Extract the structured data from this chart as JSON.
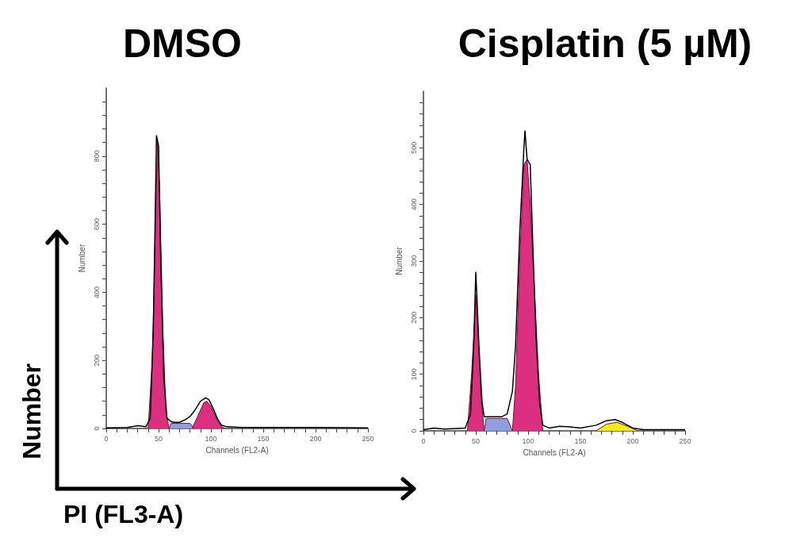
{
  "chart_data": [
    {
      "type": "area",
      "title": "DMSO",
      "xlabel": "Channels (FL2-A)",
      "ylabel": "Number",
      "marker": "none",
      "grid": false,
      "annotations": [
        "Number",
        "PI (FL3-A)"
      ],
      "xlim": [
        0,
        250
      ],
      "xticks": [
        0,
        {
          "value": 10,
          "label": null
        },
        {
          "value": 20,
          "label": null
        },
        {
          "value": 30,
          "label": null
        },
        {
          "value": 40,
          "label": null
        },
        50,
        {
          "value": 60,
          "label": null
        },
        {
          "value": 70,
          "label": null
        },
        {
          "value": 80,
          "label": null
        },
        {
          "value": 90,
          "label": null
        },
        100,
        {
          "value": 110,
          "label": null
        },
        {
          "value": 120,
          "label": null
        },
        {
          "value": 130,
          "label": null
        },
        {
          "value": 140,
          "label": null
        },
        150,
        {
          "value": 160,
          "label": null
        },
        {
          "value": 170,
          "label": null
        },
        {
          "value": 180,
          "label": null
        },
        {
          "value": 190,
          "label": null
        },
        200,
        {
          "value": 210,
          "label": null
        },
        {
          "value": 220,
          "label": null
        },
        {
          "value": 230,
          "label": null
        },
        {
          "value": 240,
          "label": null
        },
        250
      ],
      "ylim": [
        0,
        1000
      ],
      "yticks": [
        0,
        {
          "value": 40,
          "label": null
        },
        {
          "value": 80,
          "label": null
        },
        {
          "value": 120,
          "label": null
        },
        {
          "value": 160,
          "label": null
        },
        200,
        {
          "value": 240,
          "label": null
        },
        {
          "value": 280,
          "label": null
        },
        {
          "value": 320,
          "label": null
        },
        {
          "value": 360,
          "label": null
        },
        400,
        {
          "value": 440,
          "label": null
        },
        {
          "value": 480,
          "label": null
        },
        {
          "value": 520,
          "label": null
        },
        {
          "value": 560,
          "label": null
        },
        600,
        {
          "value": 640,
          "label": null
        },
        {
          "value": 680,
          "label": null
        },
        {
          "value": 720,
          "label": null
        },
        {
          "value": 760,
          "label": null
        },
        800,
        {
          "value": 840,
          "label": null
        },
        {
          "value": 880,
          "label": null
        },
        {
          "value": 920,
          "label": null
        },
        {
          "value": 960,
          "label": null
        }
      ],
      "series": [
        {
          "type": "area",
          "color": "#8fa0e0",
          "x": [
            60,
            62,
            70,
            80,
            84
          ],
          "values": [
            0,
            15,
            15,
            15,
            0
          ]
        },
        {
          "type": "area",
          "color": "#dc2f82",
          "x": [
            40,
            44,
            47,
            49,
            51,
            54,
            57,
            60
          ],
          "values": [
            0,
            200,
            600,
            840,
            700,
            300,
            50,
            0
          ]
        },
        {
          "type": "area",
          "color": "#dc2f82",
          "x": [
            82,
            88,
            93,
            96,
            100,
            105,
            110,
            114
          ],
          "values": [
            0,
            40,
            75,
            80,
            65,
            30,
            5,
            0
          ]
        },
        {
          "type": "line",
          "color": "#000000",
          "x": [
            0,
            20,
            30,
            38,
            42,
            45,
            48,
            50,
            52,
            55,
            58,
            62,
            65,
            70,
            75,
            80,
            85,
            90,
            95,
            98,
            102,
            106,
            110,
            115,
            130,
            150,
            200,
            250
          ],
          "values": [
            2,
            3,
            8,
            5,
            30,
            300,
            860,
            830,
            500,
            150,
            30,
            20,
            18,
            18,
            25,
            35,
            55,
            80,
            90,
            85,
            60,
            30,
            10,
            5,
            3,
            3,
            3,
            2
          ]
        }
      ]
    },
    {
      "type": "area",
      "title": "Cisplatin (5 µM)",
      "xlabel": "Channels (FL2-A)",
      "ylabel": "Number",
      "marker": "none",
      "grid": false,
      "xlim": [
        0,
        250
      ],
      "xticks": [
        0,
        {
          "value": 10,
          "label": null
        },
        {
          "value": 20,
          "label": null
        },
        {
          "value": 30,
          "label": null
        },
        {
          "value": 40,
          "label": null
        },
        50,
        {
          "value": 60,
          "label": null
        },
        {
          "value": 70,
          "label": null
        },
        {
          "value": 80,
          "label": null
        },
        {
          "value": 90,
          "label": null
        },
        100,
        {
          "value": 110,
          "label": null
        },
        {
          "value": 120,
          "label": null
        },
        {
          "value": 130,
          "label": null
        },
        {
          "value": 140,
          "label": null
        },
        150,
        {
          "value": 160,
          "label": null
        },
        {
          "value": 170,
          "label": null
        },
        {
          "value": 180,
          "label": null
        },
        {
          "value": 190,
          "label": null
        },
        200,
        {
          "value": 210,
          "label": null
        },
        {
          "value": 220,
          "label": null
        },
        {
          "value": 230,
          "label": null
        },
        {
          "value": 240,
          "label": null
        },
        250
      ],
      "ylim": [
        0,
        600
      ],
      "yticks": [
        0,
        {
          "value": 20,
          "label": null
        },
        {
          "value": 40,
          "label": null
        },
        {
          "value": 60,
          "label": null
        },
        {
          "value": 80,
          "label": null
        },
        100,
        {
          "value": 120,
          "label": null
        },
        {
          "value": 140,
          "label": null
        },
        {
          "value": 160,
          "label": null
        },
        {
          "value": 180,
          "label": null
        },
        200,
        {
          "value": 220,
          "label": null
        },
        {
          "value": 240,
          "label": null
        },
        {
          "value": 260,
          "label": null
        },
        {
          "value": 280,
          "label": null
        },
        300,
        {
          "value": 320,
          "label": null
        },
        {
          "value": 340,
          "label": null
        },
        {
          "value": 360,
          "label": null
        },
        {
          "value": 380,
          "label": null
        },
        400,
        {
          "value": 420,
          "label": null
        },
        {
          "value": 440,
          "label": null
        },
        {
          "value": 460,
          "label": null
        },
        {
          "value": 480,
          "label": null
        },
        500,
        {
          "value": 520,
          "label": null
        },
        {
          "value": 540,
          "label": null
        },
        {
          "value": 560,
          "label": null
        },
        {
          "value": 580,
          "label": null
        }
      ],
      "series": [
        {
          "type": "area",
          "color": "#8fa0e0",
          "x": [
            58,
            60,
            70,
            80,
            85
          ],
          "values": [
            0,
            22,
            22,
            22,
            0
          ]
        },
        {
          "type": "area",
          "color": "#dc2f82",
          "x": [
            42,
            46,
            49,
            50,
            52,
            55,
            58
          ],
          "values": [
            0,
            100,
            200,
            240,
            180,
            60,
            0
          ]
        },
        {
          "type": "area",
          "color": "#dc2f82",
          "x": [
            85,
            88,
            92,
            96,
            99,
            102,
            106,
            110,
            114
          ],
          "values": [
            0,
            80,
            300,
            470,
            480,
            400,
            250,
            100,
            0
          ]
        },
        {
          "type": "area",
          "color": "#f0ec17",
          "x": [
            165,
            175,
            185,
            195,
            205
          ],
          "values": [
            0,
            12,
            15,
            8,
            0
          ]
        },
        {
          "type": "line",
          "color": "#000000",
          "x": [
            0,
            10,
            20,
            40,
            45,
            48,
            50,
            51,
            53,
            56,
            58,
            65,
            75,
            80,
            85,
            88,
            92,
            96,
            97,
            99,
            102,
            105,
            108,
            111,
            114,
            120,
            130,
            140,
            150,
            165,
            175,
            183,
            190,
            200,
            210,
            250
          ],
          "values": [
            2,
            5,
            3,
            5,
            30,
            150,
            280,
            240,
            150,
            50,
            25,
            25,
            25,
            30,
            70,
            150,
            350,
            500,
            530,
            480,
            470,
            300,
            150,
            50,
            10,
            5,
            8,
            7,
            5,
            10,
            18,
            20,
            15,
            5,
            2,
            2
          ]
        }
      ]
    }
  ]
}
